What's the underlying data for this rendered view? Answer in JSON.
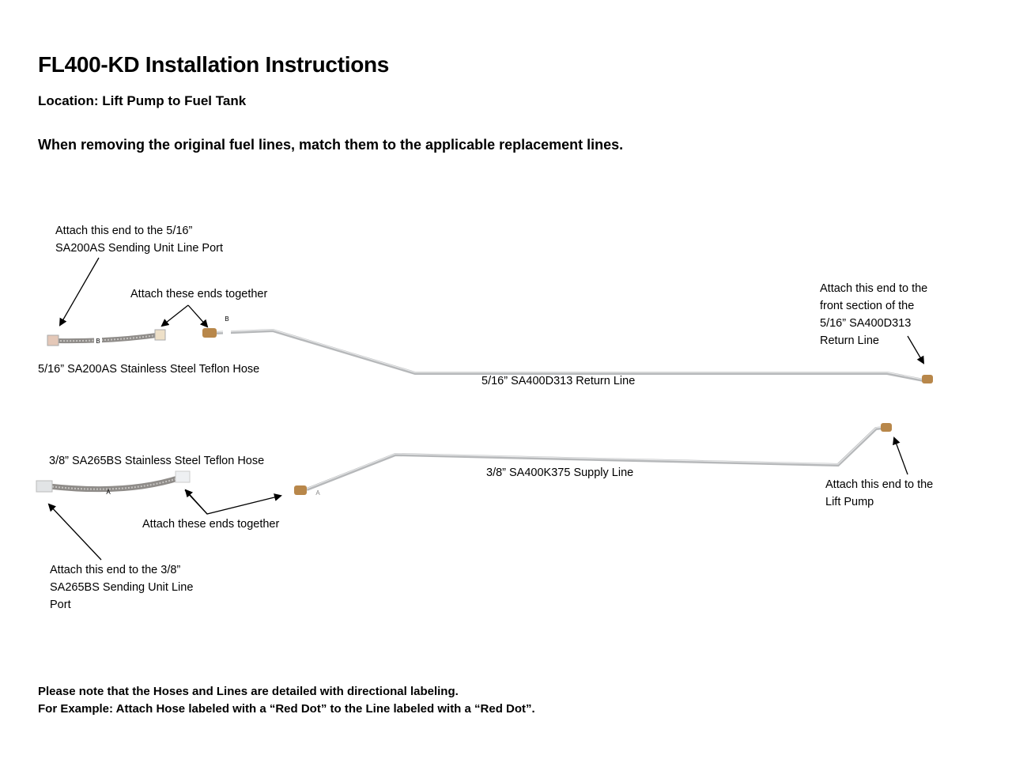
{
  "title": "FL400-KD Installation Instructions",
  "location": "Location: Lift Pump to Fuel Tank",
  "instruction": "When removing the original fuel lines, match them to the applicable replacement lines.",
  "labels": {
    "top_hose_end": [
      "Attach this end to the 5/16”",
      "SA200AS Sending Unit Line Port"
    ],
    "top_together": "Attach these ends together",
    "top_hose_name": "5/16” SA200AS Stainless Steel Teflon Hose",
    "return_line_name": "5/16” SA400D313 Return Line",
    "return_end": [
      "Attach this end to the",
      "front section of the",
      "5/16” SA400D313",
      "Return Line"
    ],
    "bottom_hose_name": "3/8” SA265BS Stainless Steel Teflon Hose",
    "supply_line_name": "3/8” SA400K375 Supply Line",
    "bottom_together": "Attach these ends together",
    "bottom_hose_end": [
      "Attach this end to the 3/8”",
      "SA265BS Sending Unit Line",
      "Port"
    ],
    "lift_pump_end": [
      "Attach this end to the",
      "Lift Pump"
    ]
  },
  "part_tags": {
    "return": "B",
    "supply": "A"
  },
  "notes": [
    "Please note that the Hoses and Lines are detailed with directional labeling.",
    "For Example: Attach Hose labeled with a “Red Dot” to the Line labeled with a “Red Dot”."
  ],
  "colors": {
    "tube": "#c9cbcd",
    "hose": "#9a9794",
    "brass": "#b8874a",
    "fitting": "#d8d8d8"
  }
}
